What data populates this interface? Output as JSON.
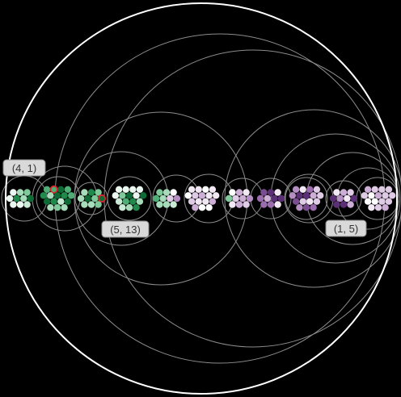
{
  "diagram": {
    "colors": {
      "background": "#000000",
      "outer_ring": "#ffffff",
      "arc_stroke": "#8c8c8c",
      "highlight": "#e0202a"
    },
    "labels": [
      {
        "id": "label-a",
        "text": "(4, 1)"
      },
      {
        "id": "label-b",
        "text": "(5, 13)"
      },
      {
        "id": "label-c",
        "text": "(1, 5)"
      }
    ]
  }
}
